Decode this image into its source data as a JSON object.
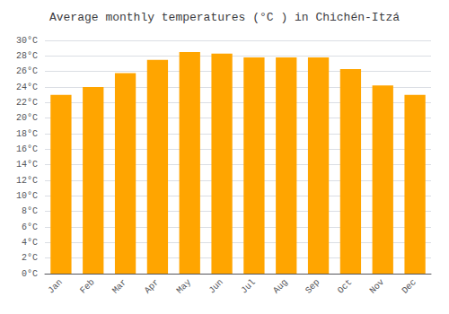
{
  "chart_data": {
    "type": "bar",
    "title": "Average monthly temperatures (°C ) in Chichén-Itzá",
    "categories": [
      "Jan",
      "Feb",
      "Mar",
      "Apr",
      "May",
      "Jun",
      "Jul",
      "Aug",
      "Sep",
      "Oct",
      "Nov",
      "Dec"
    ],
    "values": [
      23.0,
      24.0,
      25.8,
      27.5,
      28.5,
      28.3,
      27.8,
      27.8,
      27.8,
      26.3,
      24.2,
      23.0
    ],
    "color": "#FFA500",
    "ylim": [
      0,
      30
    ],
    "yticks": [
      {
        "value": 0,
        "label": "0°C"
      },
      {
        "value": 2,
        "label": "2°C"
      },
      {
        "value": 4,
        "label": "4°C"
      },
      {
        "value": 6,
        "label": "6°C"
      },
      {
        "value": 8,
        "label": "8°C"
      },
      {
        "value": 10,
        "label": "10°C"
      },
      {
        "value": 12,
        "label": "12°C"
      },
      {
        "value": 14,
        "label": "14°C"
      },
      {
        "value": 16,
        "label": "16°C"
      },
      {
        "value": 18,
        "label": "18°C"
      },
      {
        "value": 20,
        "label": "20°C"
      },
      {
        "value": 22,
        "label": "22°C"
      },
      {
        "value": 24,
        "label": "24°C"
      },
      {
        "value": 26,
        "label": "26°C"
      },
      {
        "value": 28,
        "label": "28°C"
      },
      {
        "value": 30,
        "label": "30°C"
      }
    ],
    "grid": true
  }
}
